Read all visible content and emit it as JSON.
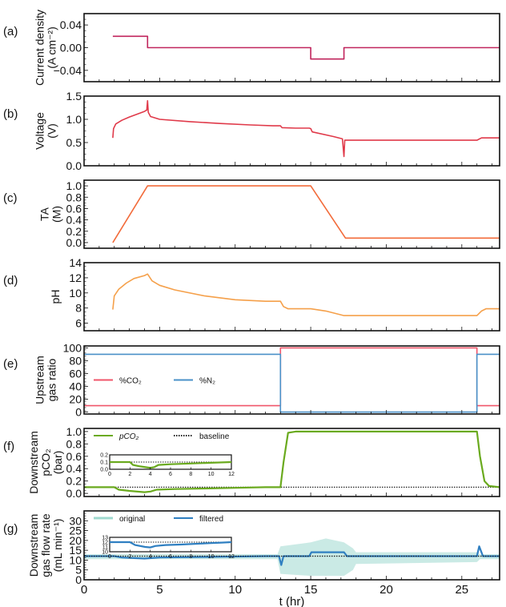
{
  "chart_data": [
    {
      "id": "a",
      "type": "line",
      "panel_label": "(a)",
      "ylabel": [
        "Current density",
        "(A cm⁻²)"
      ],
      "ylim": [
        -0.06,
        0.06
      ],
      "yticks": [
        -0.04,
        0.0,
        0.04
      ],
      "ytick_labels": [
        "−0.04",
        "0.00",
        "0.04"
      ],
      "series": [
        {
          "name": "current density",
          "color": "#c0245c",
          "x": [
            1.9,
            4.2,
            4.2,
            15.0,
            15.0,
            17.2,
            17.2,
            27.5
          ],
          "y": [
            0.02,
            0.02,
            0.0,
            0.0,
            -0.02,
            -0.02,
            0.0,
            0.0
          ]
        }
      ]
    },
    {
      "id": "b",
      "type": "line",
      "panel_label": "(b)",
      "ylabel": [
        "Voltage",
        "(V)"
      ],
      "ylim": [
        0,
        1.5
      ],
      "yticks": [
        0,
        0.5,
        1.0,
        1.5
      ],
      "ytick_labels": [
        "0.0",
        "0.5",
        "1.0",
        "1.5"
      ],
      "series": [
        {
          "name": "voltage",
          "color": "#e03a4a",
          "x": [
            1.9,
            1.95,
            2.1,
            2.5,
            3.0,
            3.5,
            4.0,
            4.15,
            4.2,
            4.25,
            4.4,
            5.0,
            7.0,
            9.0,
            11.0,
            12.5,
            13.0,
            13.1,
            14.0,
            14.9,
            15.0,
            15.1,
            16.5,
            17.1,
            17.2,
            17.25,
            18.0,
            25.0,
            26.0,
            26.3,
            27.5
          ],
          "y": [
            0.6,
            0.8,
            0.9,
            0.98,
            1.05,
            1.11,
            1.17,
            1.2,
            1.4,
            1.15,
            1.06,
            1.0,
            0.95,
            0.91,
            0.88,
            0.86,
            0.86,
            0.82,
            0.81,
            0.81,
            0.8,
            0.73,
            0.63,
            0.58,
            0.2,
            0.55,
            0.55,
            0.55,
            0.55,
            0.6,
            0.6
          ]
        }
      ]
    },
    {
      "id": "c",
      "type": "line",
      "panel_label": "(c)",
      "ylabel": [
        "TA",
        "(M)"
      ],
      "ylim": [
        -0.1,
        1.1
      ],
      "yticks": [
        0,
        0.2,
        0.4,
        0.6,
        0.8,
        1.0
      ],
      "ytick_labels": [
        "0.0",
        "0.2",
        "0.4",
        "0.6",
        "0.8",
        "1.0"
      ],
      "series": [
        {
          "name": "TA",
          "color": "#f26b3a",
          "x": [
            1.9,
            4.2,
            15.0,
            17.3,
            27.5
          ],
          "y": [
            0.0,
            1.0,
            1.0,
            0.08,
            0.08
          ]
        }
      ]
    },
    {
      "id": "d",
      "type": "line",
      "panel_label": "(d)",
      "ylabel": [
        "pH"
      ],
      "ylim": [
        5,
        14
      ],
      "yticks": [
        6,
        8,
        10,
        12,
        14
      ],
      "ytick_labels": [
        "6",
        "8",
        "10",
        "12",
        "14"
      ],
      "series": [
        {
          "name": "pH",
          "color": "#f5a04a",
          "x": [
            1.9,
            2.0,
            2.3,
            2.8,
            3.3,
            4.0,
            4.2,
            4.5,
            5.0,
            6.0,
            8.0,
            10.0,
            12.0,
            13.0,
            13.2,
            13.5,
            15.0,
            16.0,
            17.2,
            20.0,
            26.0,
            26.3,
            26.6,
            27.5
          ],
          "y": [
            7.8,
            9.6,
            10.5,
            11.3,
            11.9,
            12.3,
            12.5,
            11.6,
            11.0,
            10.4,
            9.6,
            9.1,
            8.9,
            8.9,
            8.2,
            7.9,
            7.9,
            7.6,
            7.0,
            7.0,
            7.0,
            7.6,
            7.9,
            7.9
          ]
        }
      ]
    },
    {
      "id": "e",
      "type": "line",
      "panel_label": "(e)",
      "ylabel": [
        "Upstream",
        "gas ratio"
      ],
      "ylim": [
        -3,
        103
      ],
      "yticks": [
        0,
        20,
        40,
        60,
        80,
        100
      ],
      "ytick_labels": [
        "0",
        "20",
        "40",
        "60",
        "80",
        "100"
      ],
      "legend": {
        "placement": "center-left",
        "entries": [
          "%CO₂",
          "%N₂"
        ]
      },
      "series": [
        {
          "name": "%CO₂",
          "color": "#f0566a",
          "x": [
            0,
            13.0,
            13.0,
            26.0,
            26.0,
            27.5
          ],
          "y": [
            10,
            10,
            100,
            100,
            10,
            10
          ]
        },
        {
          "name": "%N₂",
          "color": "#4a90c8",
          "x": [
            0,
            13.0,
            13.0,
            26.0,
            26.0,
            27.5
          ],
          "y": [
            90,
            90,
            0,
            0,
            90,
            90
          ]
        }
      ]
    },
    {
      "id": "f",
      "type": "line",
      "panel_label": "(f)",
      "ylabel": [
        "Downstream",
        "pCO₂",
        "(bar)"
      ],
      "ylim": [
        -0.05,
        1.05
      ],
      "yticks": [
        0,
        0.2,
        0.4,
        0.6,
        0.8,
        1.0
      ],
      "ytick_labels": [
        "0.0",
        "0.2",
        "0.4",
        "0.6",
        "0.8",
        "1.0"
      ],
      "legend": {
        "placement": "top-left",
        "entries": [
          "pCO₂",
          "baseline"
        ]
      },
      "baseline": 0.1,
      "series": [
        {
          "name": "pCO₂",
          "color": "#6aaa1e",
          "x": [
            0,
            2.0,
            2.3,
            3.0,
            4.0,
            4.4,
            4.8,
            6.0,
            8.0,
            10.0,
            12.0,
            13.0,
            13.2,
            13.5,
            14.0,
            26.0,
            26.2,
            26.5,
            26.8,
            27.5
          ],
          "y": [
            0.1,
            0.1,
            0.06,
            0.04,
            0.02,
            0.03,
            0.06,
            0.07,
            0.08,
            0.09,
            0.1,
            0.1,
            0.5,
            0.98,
            1.0,
            1.0,
            0.6,
            0.2,
            0.12,
            0.1
          ]
        }
      ],
      "inset": {
        "xlim": [
          0,
          12
        ],
        "xticks": [
          0,
          2,
          4,
          6,
          8,
          10,
          12
        ],
        "ylim": [
          0,
          0.2
        ],
        "yticks": [
          0,
          0.1,
          0.2
        ],
        "ytick_labels": [
          "0.0",
          "0.1",
          "0.2"
        ],
        "x": [
          0,
          2.0,
          2.3,
          3.0,
          4.0,
          4.4,
          4.8,
          6.0,
          8.0,
          10.0,
          12.0
        ],
        "y": [
          0.1,
          0.1,
          0.06,
          0.04,
          0.02,
          0.03,
          0.06,
          0.07,
          0.08,
          0.09,
          0.1
        ]
      }
    },
    {
      "id": "g",
      "type": "line",
      "panel_label": "(g)",
      "ylabel": [
        "Downstream",
        "gas flow rate",
        "(mL min⁻¹)"
      ],
      "ylim": [
        0,
        35
      ],
      "yticks": [
        0,
        5,
        10,
        15,
        20,
        25,
        30
      ],
      "ytick_labels": [
        "0",
        "5",
        "10",
        "15",
        "20",
        "25",
        "30"
      ],
      "xlabel": "t (hr)",
      "xlim": [
        0,
        27.5
      ],
      "xticks": [
        0,
        5,
        10,
        15,
        20,
        25
      ],
      "xtick_labels": [
        "0",
        "5",
        "10",
        "15",
        "20",
        "25"
      ],
      "legend": {
        "placement": "top-left",
        "entries": [
          "original",
          "filtered"
        ]
      },
      "baseline": 12,
      "series": [
        {
          "name": "original",
          "color": "#9fd9cf",
          "x": [
            0,
            12.8,
            13.0,
            15.0,
            16.0,
            17.2,
            17.8,
            18.0,
            26.0,
            26.2,
            27.5
          ],
          "y_low": [
            10.5,
            10.5,
            3,
            2,
            2,
            2,
            5,
            8,
            9,
            10.5,
            10.5
          ],
          "y_high": [
            13,
            13,
            17,
            19,
            21,
            19,
            16,
            14,
            14,
            13,
            13
          ]
        },
        {
          "name": "filtered",
          "color": "#2f7fc1",
          "x": [
            0,
            2.0,
            2.5,
            4.0,
            5.0,
            8.0,
            12.0,
            12.9,
            13.05,
            13.2,
            14.9,
            15.05,
            17.2,
            17.4,
            26.0,
            26.15,
            26.4,
            27.5
          ],
          "y": [
            12,
            12,
            11.3,
            10.8,
            11.3,
            11.6,
            12,
            12,
            7.5,
            12,
            12,
            14,
            14,
            12,
            12,
            17,
            12,
            12
          ]
        }
      ],
      "inset": {
        "xlim": [
          0,
          12
        ],
        "xticks": [
          0,
          2,
          4,
          6,
          8,
          10,
          12
        ],
        "ylim": [
          10,
          13
        ],
        "yticks": [
          10,
          11,
          12,
          13
        ],
        "ytick_labels": [
          "10",
          "11",
          "12",
          "13"
        ],
        "x": [
          0,
          2.0,
          2.5,
          3.5,
          4.0,
          4.5,
          5.5,
          7.0,
          8.0,
          9.0,
          10.0,
          11.0,
          12.0
        ],
        "y": [
          12,
          12,
          11.4,
          11.0,
          10.9,
          11.2,
          11.4,
          11.5,
          11.6,
          11.7,
          11.8,
          11.9,
          12.0
        ]
      }
    }
  ],
  "shared_x": {
    "xlim": [
      0,
      27.5
    ],
    "xticks_major": [
      0,
      5,
      10,
      15,
      20,
      25
    ]
  }
}
